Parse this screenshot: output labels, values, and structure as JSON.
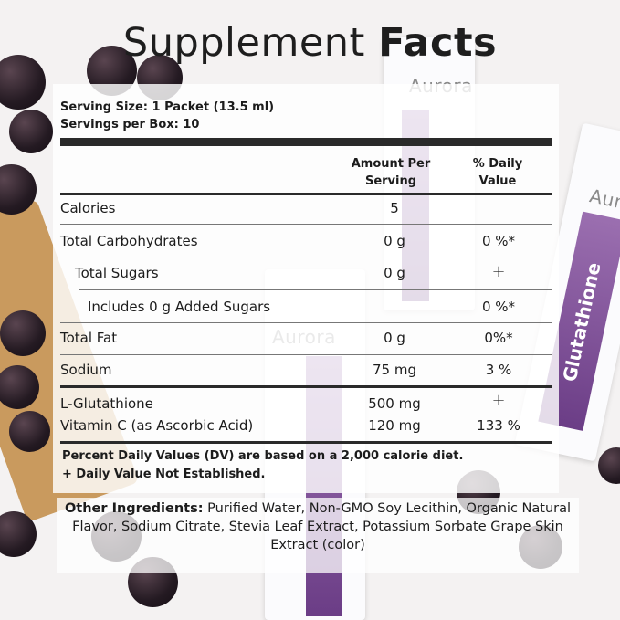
{
  "title": {
    "regular": "Supplement",
    "bold": "Facts"
  },
  "serving": {
    "size": "Serving Size: 1 Packet (13.5 ml)",
    "per_box": "Servings per Box: 10"
  },
  "headers": {
    "amount": "Amount Per Serving",
    "dv": "% Daily Value"
  },
  "rows": [
    {
      "label": "Calories",
      "amount": "5",
      "dv": ""
    },
    {
      "label": "Total Carbohydrates",
      "amount": "0 g",
      "dv": "0 %*"
    },
    {
      "label": "Total Sugars",
      "amount": "0 g",
      "dv": "+"
    },
    {
      "label": "Includes 0 g Added Sugars",
      "amount": "",
      "dv": "0 %*"
    },
    {
      "label": "Total Fat",
      "amount": "0 g",
      "dv": "0%*"
    },
    {
      "label": "Sodium",
      "amount": "75 mg",
      "dv": "3 %"
    },
    {
      "label": "L-Glutathione",
      "amount": "500 mg",
      "dv": "+"
    },
    {
      "label": "Vitamin C (as Ascorbic Acid)",
      "amount": "120 mg",
      "dv": "133 %"
    }
  ],
  "footnotes": [
    "Percent Daily Values (DV) are based on a 2,000 calorie diet.",
    "+ Daily Value Not Established."
  ],
  "ingredients": {
    "label": "Other Ingredients:",
    "text": " Purified Water, Non-GMO Soy Lecithin, Organic Natural Flavor, Sodium Citrate, Stevia Leaf Extract, Potassium Sorbate Grape Skin Extract (color)"
  },
  "packaging": {
    "brand": "Aurora",
    "product": "Glutathione"
  },
  "colors": {
    "accent": "#7a4a94",
    "grape": "#241a22"
  }
}
